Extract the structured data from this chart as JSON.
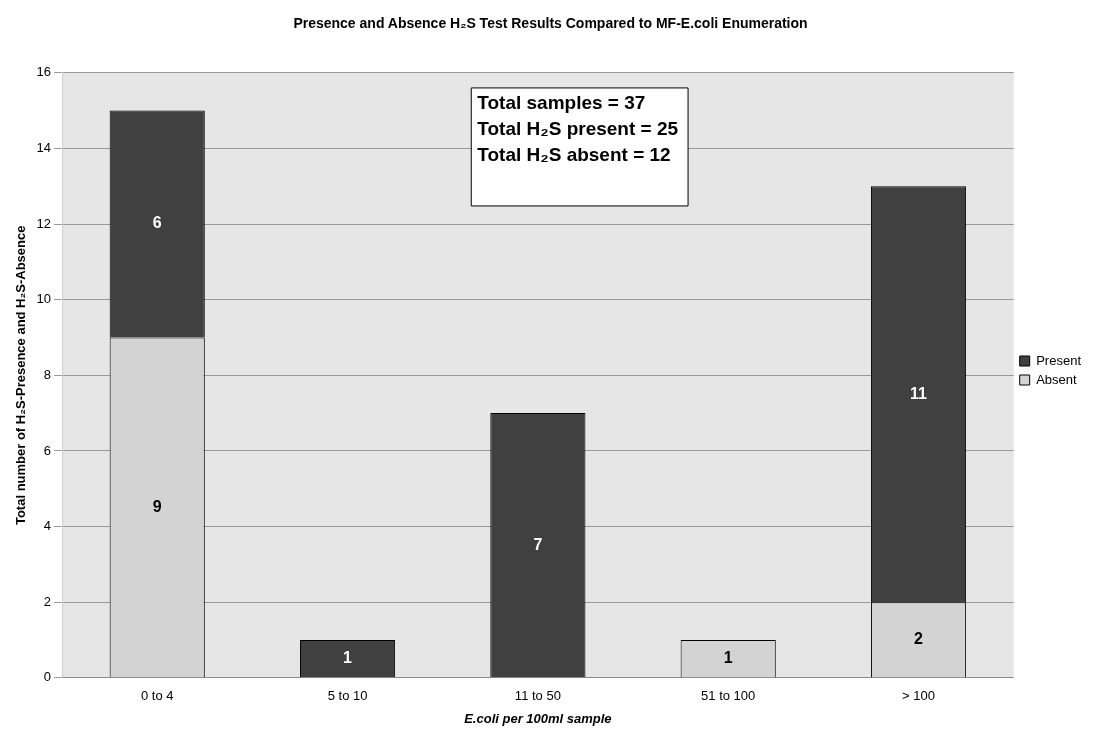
{
  "chart_data": {
    "type": "bar",
    "title": "Presence and Absence H₂S Test Results Compared to MF-E.coli Enumeration",
    "xlabel": "E.coli per 100ml sample",
    "ylabel": "Total number of H₂S-Presence and H₂S-Absence",
    "categories": [
      "0 to 4",
      "5 to 10",
      "11 to 50",
      "51 to 100",
      "> 100"
    ],
    "stacked": true,
    "series": [
      {
        "name": "Absent",
        "color": "#d3d3d3",
        "values": [
          9,
          0,
          0,
          1,
          2
        ],
        "value_labels": [
          "9",
          null,
          null,
          "1",
          "2"
        ]
      },
      {
        "name": "Present",
        "color": "#404040",
        "values": [
          6,
          1,
          7,
          0,
          11
        ],
        "value_labels": [
          "6",
          "1",
          "7",
          null,
          "11"
        ]
      }
    ],
    "ylim": [
      0,
      16
    ],
    "yticks": [
      0,
      2,
      4,
      6,
      8,
      10,
      12,
      14,
      16
    ],
    "grid": "y",
    "legend": "right",
    "annotations": [
      "Total samples = 37",
      "Total H₂S present = 25",
      "Total H₂S absent = 12"
    ]
  }
}
